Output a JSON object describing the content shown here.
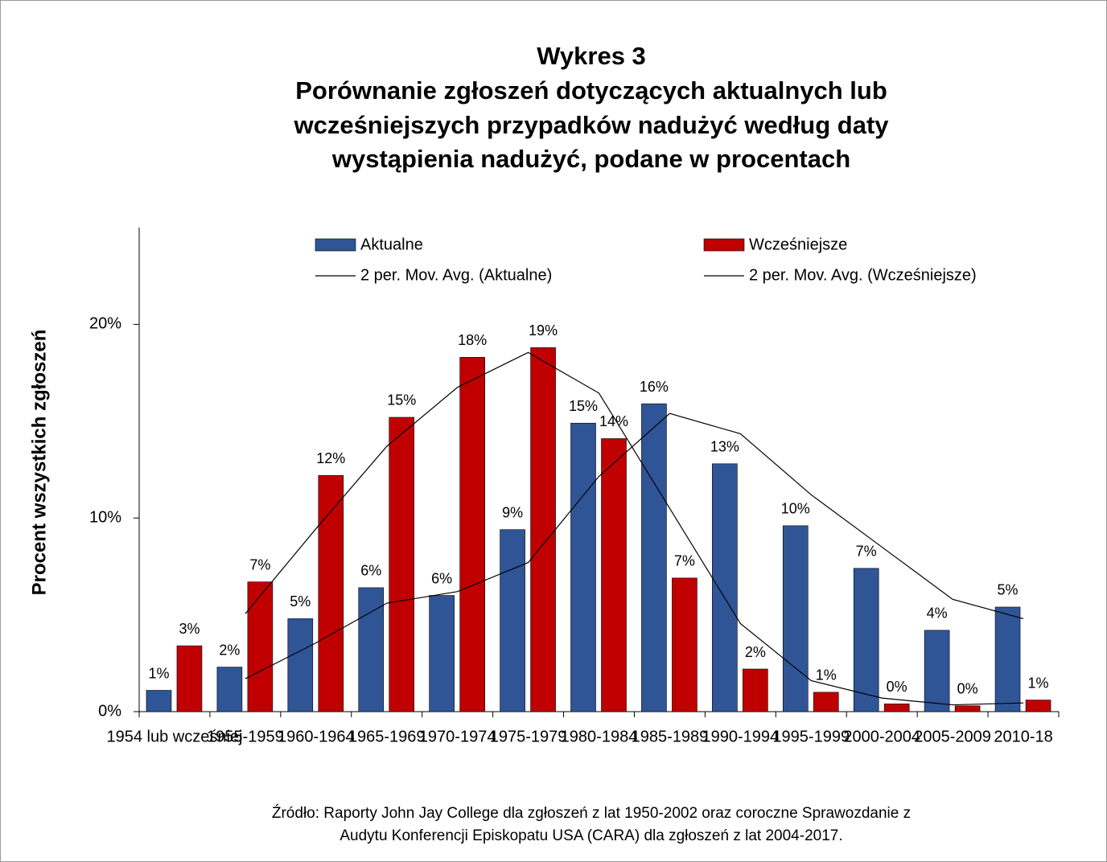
{
  "chart_data": {
    "type": "bar",
    "title": [
      "Wykres 3",
      "Porównanie zgłoszeń dotyczących aktualnych lub",
      "wcześniejszych przypadków nadużyć według daty",
      "wystąpienia nadużyć, podane w procentach"
    ],
    "y_label": "Procent wszystkich zgłoszeń",
    "source": [
      "Źródło: Raporty John Jay College dla zgłoszeń z lat 1950-2002 oraz coroczne Sprawozdanie z",
      "Audytu Konferencji Episkopatu USA (CARA) dla zgłoszeń z lat 2004-2017."
    ],
    "categories": [
      "1954 lub wcześniej",
      "1955-1959",
      "1960-1964",
      "1965-1969",
      "1970-1974",
      "1975-1979",
      "1980-1984",
      "1985-1989",
      "1990-1994",
      "1995-1999",
      "2000-2004",
      "2005-2009",
      "2010-18"
    ],
    "series": [
      {
        "name": "Aktualne",
        "color": "#2f5597",
        "values": [
          1.1,
          2.3,
          4.8,
          6.4,
          6.0,
          9.4,
          14.9,
          15.9,
          12.8,
          9.6,
          7.4,
          4.2,
          5.4
        ],
        "value_labels": [
          "1%",
          "2%",
          "5%",
          "6%",
          "6%",
          "9%",
          "15%",
          "16%",
          "13%",
          "10%",
          "7%",
          "4%",
          "5%"
        ]
      },
      {
        "name": "Wcześniejsze",
        "color": "#c00000",
        "values": [
          3.4,
          6.7,
          12.2,
          15.2,
          18.3,
          18.8,
          14.1,
          6.9,
          2.2,
          1.0,
          0.4,
          0.3,
          0.6
        ],
        "value_labels": [
          "3%",
          "7%",
          "12%",
          "15%",
          "18%",
          "19%",
          "14%",
          "7%",
          "2%",
          "1%",
          "0%",
          "0%",
          "1%"
        ]
      }
    ],
    "trendlines": [
      {
        "name": "2 per. Mov. Avg. (Aktualne)",
        "series": 0,
        "period": 2,
        "color": "#000000"
      },
      {
        "name": "2 per. Mov. Avg. (Wcześniejsze)",
        "series": 1,
        "period": 2,
        "color": "#000000"
      }
    ],
    "ylim": [
      0,
      25
    ],
    "yticks": [
      {
        "value": 0,
        "label": "0%"
      },
      {
        "value": 10,
        "label": "10%"
      },
      {
        "value": 20,
        "label": "20%"
      }
    ]
  }
}
